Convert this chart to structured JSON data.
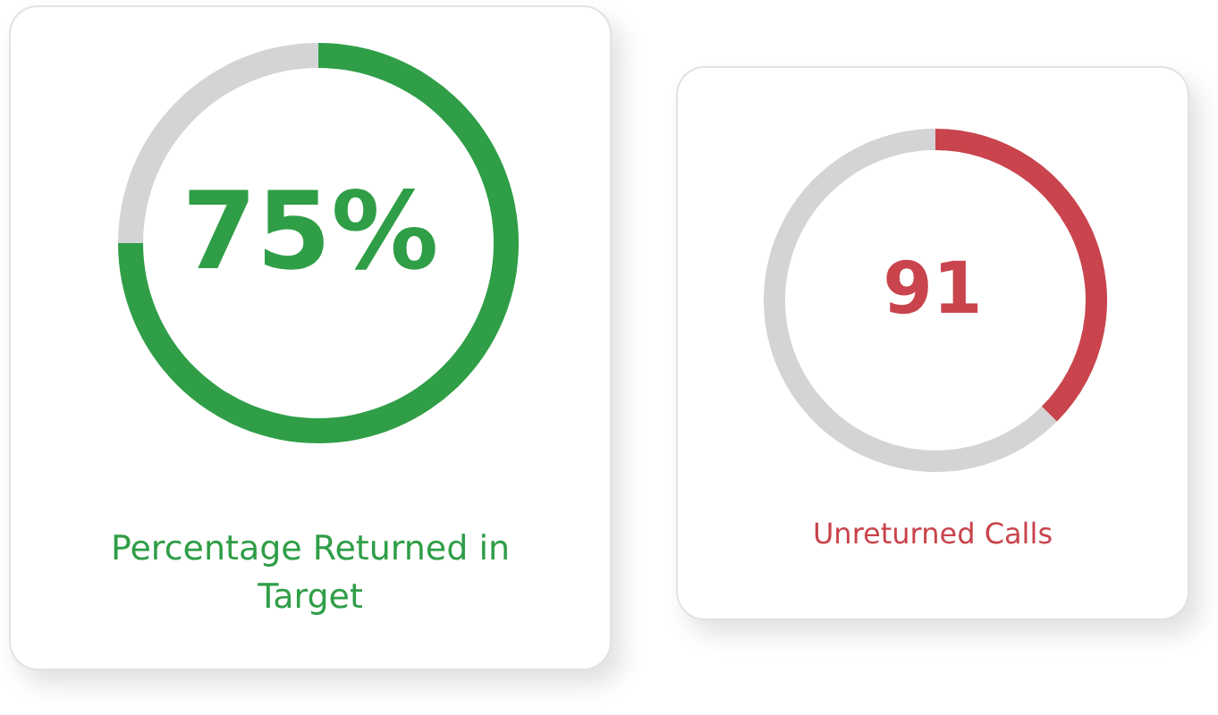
{
  "chart_data": [
    {
      "type": "donut",
      "title": "Percentage Returned in Target",
      "categories": [
        null,
        null
      ],
      "values": [
        75,
        25
      ],
      "colors": [
        "#2f9e47",
        "#d3d4d6"
      ],
      "annotations": [
        "75%"
      ]
    },
    {
      "type": "donut",
      "title": "Unreturned Calls",
      "categories": [
        null,
        null
      ],
      "values": [
        37.5,
        62.5
      ],
      "colors": [
        "#c9444c",
        "#d3d4d6"
      ],
      "annotations": [
        "91"
      ]
    }
  ]
}
